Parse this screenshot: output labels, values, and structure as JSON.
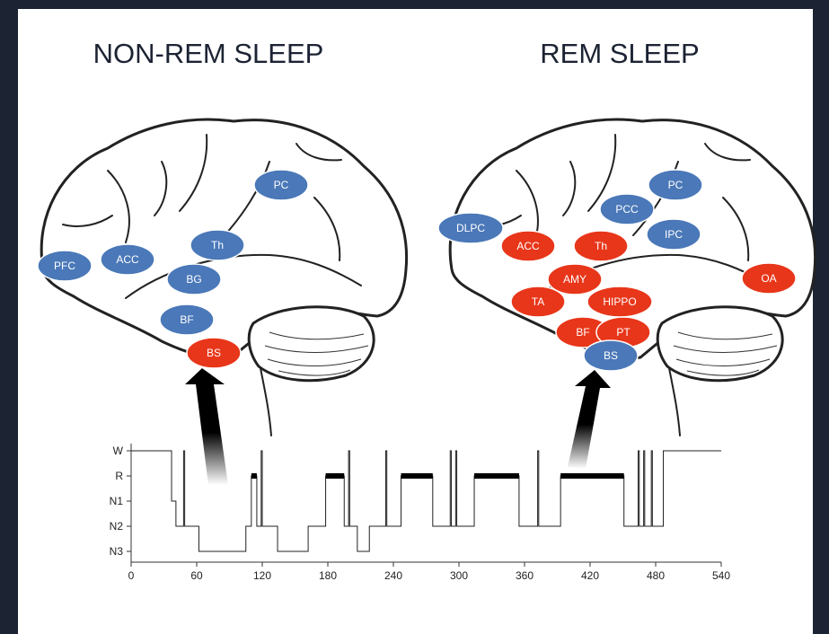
{
  "titles": {
    "left": "NON-REM SLEEP",
    "right": "REM SLEEP"
  },
  "brains": [
    {
      "nodes": [
        {
          "label": "PC",
          "color": "#4a78b8"
        },
        {
          "label": "PFC",
          "color": "#4a78b8"
        },
        {
          "label": "ACC",
          "color": "#4a78b8"
        },
        {
          "label": "Th",
          "color": "#4a78b8"
        },
        {
          "label": "BG",
          "color": "#4a78b8"
        },
        {
          "label": "BF",
          "color": "#4a78b8"
        },
        {
          "label": "BS",
          "color": "#e8361a"
        }
      ]
    },
    {
      "nodes": [
        {
          "label": "DLPC",
          "color": "#4a78b8"
        },
        {
          "label": "ACC",
          "color": "#e8361a"
        },
        {
          "label": "Th",
          "color": "#e8361a"
        },
        {
          "label": "PC",
          "color": "#4a78b8"
        },
        {
          "label": "PCC",
          "color": "#4a78b8"
        },
        {
          "label": "IPC",
          "color": "#4a78b8"
        },
        {
          "label": "AMY",
          "color": "#e8361a"
        },
        {
          "label": "TA",
          "color": "#e8361a"
        },
        {
          "label": "HIPPO",
          "color": "#e8361a"
        },
        {
          "label": "BF",
          "color": "#e8361a"
        },
        {
          "label": "PT",
          "color": "#e8361a"
        },
        {
          "label": "BS",
          "color": "#4a78b8"
        },
        {
          "label": "OA",
          "color": "#e8361a"
        }
      ]
    }
  ],
  "hypnogram": {
    "stages": [
      "W",
      "R",
      "N1",
      "N2",
      "N3"
    ],
    "x": [
      0,
      37,
      41,
      48,
      49,
      62,
      105,
      110,
      115,
      119,
      120,
      134,
      162,
      178,
      195,
      199,
      200,
      207,
      218,
      233,
      234,
      247,
      276,
      292,
      293,
      297,
      298,
      314,
      355,
      372,
      373,
      393,
      451,
      464,
      465,
      469,
      470,
      476,
      477,
      487,
      540
    ],
    "values": [
      "W",
      "N1",
      "N2",
      "W",
      "N2",
      "N3",
      "N2",
      "R",
      "N2",
      "W",
      "N2",
      "N3",
      "N2",
      "R",
      "N2",
      "W",
      "N2",
      "N3",
      "N2",
      "W",
      "N2",
      "R",
      "N2",
      "W",
      "N2",
      "W",
      "N2",
      "R",
      "N2",
      "W",
      "N2",
      "R",
      "N2",
      "W",
      "N2",
      "W",
      "N2",
      "W",
      "N2",
      "W",
      "W"
    ],
    "xlim": [
      0,
      540
    ],
    "xticks": [
      0,
      60,
      120,
      180,
      240,
      300,
      360,
      420,
      480,
      540
    ]
  }
}
